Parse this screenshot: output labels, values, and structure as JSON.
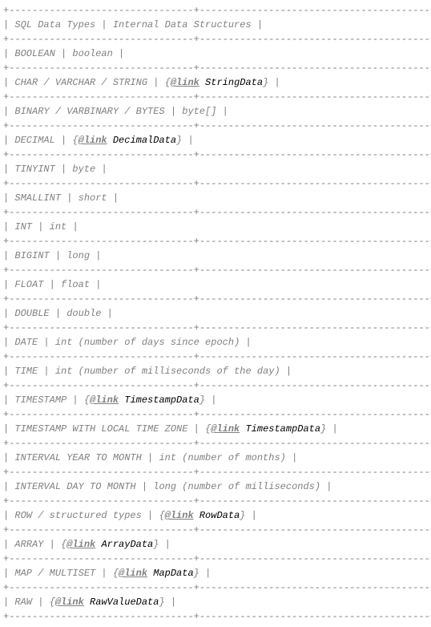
{
  "divider_char": "-",
  "corner_char": "+",
  "pipe_char": "|",
  "col1_width": 32,
  "col2_width": 40,
  "header": {
    "col1": "SQL Data Types",
    "col2": "Internal Data Structures"
  },
  "rows": [
    {
      "sql": "BOOLEAN",
      "internal_plain": "boolean",
      "internal_link": null
    },
    {
      "sql": "CHAR / VARCHAR / STRING",
      "internal_plain": null,
      "internal_link": "StringData"
    },
    {
      "sql": "BINARY / VARBINARY / BYTES",
      "internal_plain": "byte[]",
      "internal_link": null
    },
    {
      "sql": "DECIMAL",
      "internal_plain": null,
      "internal_link": "DecimalData"
    },
    {
      "sql": "TINYINT",
      "internal_plain": "byte",
      "internal_link": null
    },
    {
      "sql": "SMALLINT",
      "internal_plain": "short",
      "internal_link": null
    },
    {
      "sql": "INT",
      "internal_plain": "int",
      "internal_link": null
    },
    {
      "sql": "BIGINT",
      "internal_plain": "long",
      "internal_link": null
    },
    {
      "sql": "FLOAT",
      "internal_plain": "float",
      "internal_link": null
    },
    {
      "sql": "DOUBLE",
      "internal_plain": "double",
      "internal_link": null
    },
    {
      "sql": "DATE",
      "internal_plain": "int (number of days since epoch)",
      "internal_link": null
    },
    {
      "sql": "TIME",
      "internal_plain": "int (number of milliseconds of the day)",
      "internal_link": null
    },
    {
      "sql": "TIMESTAMP",
      "internal_plain": null,
      "internal_link": "TimestampData"
    },
    {
      "sql": "TIMESTAMP WITH LOCAL TIME ZONE",
      "internal_plain": null,
      "internal_link": "TimestampData"
    },
    {
      "sql": "INTERVAL YEAR TO MONTH",
      "internal_plain": "int (number of months)",
      "internal_link": null
    },
    {
      "sql": "INTERVAL DAY TO MONTH",
      "internal_plain": "long (number of milliseconds)",
      "internal_link": null
    },
    {
      "sql": "ROW / structured types",
      "internal_plain": null,
      "internal_link": "RowData"
    },
    {
      "sql": "ARRAY",
      "internal_plain": null,
      "internal_link": "ArrayData"
    },
    {
      "sql": "MAP / MULTISET",
      "internal_plain": null,
      "internal_link": "MapData"
    },
    {
      "sql": "RAW",
      "internal_plain": null,
      "internal_link": "RawValueData"
    }
  ],
  "link_label": "@link"
}
